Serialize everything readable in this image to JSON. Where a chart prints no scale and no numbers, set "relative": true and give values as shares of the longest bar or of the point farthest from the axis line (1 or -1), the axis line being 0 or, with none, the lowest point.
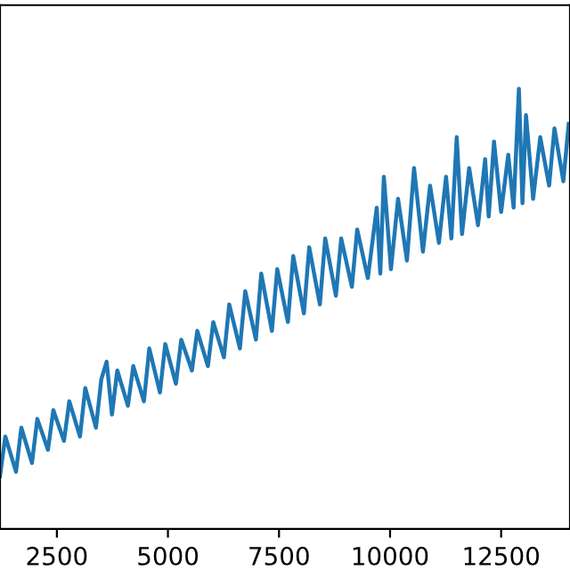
{
  "chart_data": {
    "type": "line",
    "relative": true,
    "tick_labels": "x",
    "grid": false,
    "marker": "none",
    "line_style": "solid",
    "xlim": [
      1220,
      14050
    ],
    "xticks": [
      2500,
      5000,
      7500,
      10000,
      12500
    ],
    "series": [
      {
        "color": "#1f77b4",
        "x": [
          1220,
          1340,
          1580,
          1700,
          1940,
          2060,
          2300,
          2420,
          2660,
          2780,
          3020,
          3140,
          3380,
          3500,
          3620,
          3740,
          3860,
          4100,
          4220,
          4460,
          4580,
          4820,
          4940,
          5180,
          5300,
          5540,
          5660,
          5900,
          6020,
          6260,
          6380,
          6620,
          6740,
          6980,
          7100,
          7340,
          7460,
          7700,
          7820,
          8060,
          8180,
          8420,
          8540,
          8780,
          8900,
          9140,
          9260,
          9500,
          9700,
          9780,
          9860,
          10020,
          10180,
          10380,
          10540,
          10740,
          10900,
          11100,
          11260,
          11380,
          11500,
          11620,
          11780,
          11980,
          12140,
          12220,
          12340,
          12500,
          12660,
          12780,
          12900,
          12980,
          13060,
          13220,
          13380,
          13580,
          13700,
          13900,
          14020
        ],
        "values": [
          0.12,
          0.21,
          0.13,
          0.23,
          0.15,
          0.25,
          0.18,
          0.27,
          0.2,
          0.29,
          0.21,
          0.32,
          0.23,
          0.34,
          0.38,
          0.26,
          0.36,
          0.28,
          0.37,
          0.29,
          0.41,
          0.31,
          0.42,
          0.33,
          0.43,
          0.36,
          0.45,
          0.37,
          0.47,
          0.39,
          0.51,
          0.41,
          0.54,
          0.43,
          0.58,
          0.45,
          0.59,
          0.47,
          0.62,
          0.49,
          0.64,
          0.51,
          0.66,
          0.53,
          0.66,
          0.55,
          0.68,
          0.57,
          0.73,
          0.58,
          0.8,
          0.59,
          0.75,
          0.61,
          0.82,
          0.63,
          0.78,
          0.65,
          0.8,
          0.66,
          0.89,
          0.67,
          0.82,
          0.69,
          0.84,
          0.71,
          0.88,
          0.72,
          0.85,
          0.73,
          1.0,
          0.74,
          0.94,
          0.75,
          0.89,
          0.78,
          0.91,
          0.79,
          0.92
        ]
      }
    ]
  }
}
